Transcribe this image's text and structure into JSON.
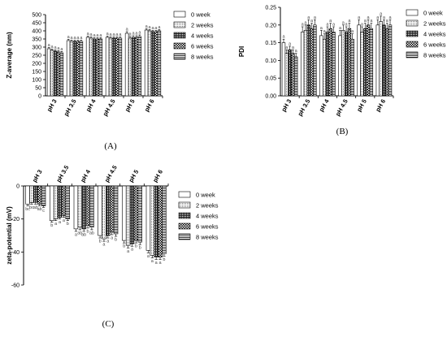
{
  "patterns": [
    "solid-white",
    "light-stipple",
    "dense-crosshatch",
    "checker",
    "horizontal-lines"
  ],
  "colors": {
    "ink": "#000000",
    "fill": "#ffffff",
    "significance_text": "#444444"
  },
  "chart_data": [
    {
      "type": "bar",
      "panel": "(A)",
      "ylabel": "Z-average (nm)",
      "ylim": [
        0,
        500
      ],
      "yticks": [
        0,
        50,
        100,
        150,
        200,
        250,
        300,
        350,
        400,
        450,
        500
      ],
      "categories": [
        "pH 3",
        "pH 3.5",
        "pH 4",
        "pH 4.5",
        "pH 5",
        "pH 6"
      ],
      "legend_position": "right",
      "series": [
        {
          "name": "0 week",
          "values": [
            290,
            340,
            360,
            360,
            385,
            405
          ],
          "errors": [
            8,
            8,
            8,
            8,
            10,
            8
          ]
        },
        {
          "name": "2 weeks",
          "values": [
            280,
            335,
            355,
            355,
            355,
            400
          ],
          "errors": [
            8,
            8,
            8,
            8,
            10,
            8
          ]
        },
        {
          "name": "4 weeks",
          "values": [
            275,
            335,
            350,
            355,
            360,
            395
          ],
          "errors": [
            8,
            8,
            8,
            8,
            10,
            8
          ]
        },
        {
          "name": "6 weeks",
          "values": [
            270,
            335,
            350,
            355,
            360,
            395
          ],
          "errors": [
            8,
            8,
            8,
            8,
            10,
            8
          ]
        },
        {
          "name": "8 weeks",
          "values": [
            265,
            335,
            350,
            355,
            365,
            400
          ],
          "errors": [
            8,
            8,
            8,
            8,
            10,
            8
          ]
        }
      ],
      "significance": [
        [
          "a",
          "a",
          "a",
          "a",
          "a"
        ],
        [
          "a",
          "a",
          "a",
          "a",
          "a"
        ],
        [
          "a",
          "a",
          "a",
          "a",
          "a"
        ],
        [
          "a",
          "a",
          "a",
          "a",
          "a"
        ],
        [
          "a",
          "a",
          "a",
          "a",
          "a"
        ],
        [
          "a",
          "a",
          "a",
          "a",
          "a"
        ]
      ]
    },
    {
      "type": "bar",
      "panel": "(B)",
      "ylabel": "PDI",
      "ylim": [
        0,
        0.25
      ],
      "yticks": [
        0,
        0.05,
        0.1,
        0.15,
        0.2,
        0.25
      ],
      "ytick_labels": [
        "0.00",
        "0.05",
        "0.10",
        "0.15",
        "0.20",
        "0.25"
      ],
      "categories": [
        "pH 3",
        "pH 3.5",
        "pH 4",
        "pH 4.5",
        "pH 5",
        "pH 6"
      ],
      "legend_position": "right",
      "series": [
        {
          "name": "0 week",
          "values": [
            0.15,
            0.18,
            0.17,
            0.17,
            0.2,
            0.2
          ],
          "errors": [
            0.01,
            0.015,
            0.015,
            0.015,
            0.015,
            0.015
          ]
        },
        {
          "name": "2 weeks",
          "values": [
            0.12,
            0.185,
            0.16,
            0.185,
            0.18,
            0.21
          ],
          "errors": [
            0.01,
            0.015,
            0.015,
            0.015,
            0.015,
            0.015
          ]
        },
        {
          "name": "4 weeks",
          "values": [
            0.13,
            0.2,
            0.18,
            0.18,
            0.19,
            0.2
          ],
          "errors": [
            0.01,
            0.015,
            0.015,
            0.015,
            0.015,
            0.015
          ]
        },
        {
          "name": "6 weeks",
          "values": [
            0.12,
            0.19,
            0.19,
            0.19,
            0.2,
            0.19
          ],
          "errors": [
            0.01,
            0.015,
            0.015,
            0.015,
            0.015,
            0.015
          ]
        },
        {
          "name": "8 weeks",
          "values": [
            0.11,
            0.2,
            0.18,
            0.16,
            0.19,
            0.2
          ],
          "errors": [
            0.01,
            0.015,
            0.015,
            0.015,
            0.015,
            0.015
          ]
        }
      ],
      "significance": [
        [
          "a",
          "a",
          "a",
          "a",
          "a"
        ],
        [
          "a",
          "a",
          "a",
          "a",
          "a"
        ],
        [
          "a",
          "a",
          "a",
          "a",
          "a"
        ],
        [
          "a",
          "a",
          "a",
          "a",
          "a"
        ],
        [
          "a",
          "a",
          "a",
          "a",
          "a"
        ],
        [
          "a",
          "a",
          "a",
          "a",
          "a"
        ]
      ]
    },
    {
      "type": "bar",
      "panel": "(C)",
      "ylabel": "zeta-potential (mV)",
      "ylim": [
        -60,
        0
      ],
      "yticks": [
        0,
        -20,
        -40,
        -60
      ],
      "categories": [
        "pH 3",
        "pH 3.5",
        "pH 4",
        "pH 4.5",
        "pH 5",
        "pH 6"
      ],
      "category_labels_position": "top",
      "legend_position": "right",
      "series": [
        {
          "name": "0 week",
          "values": [
            -11,
            -21,
            -26,
            -30,
            -33,
            -39
          ],
          "errors": [
            1,
            1,
            1.5,
            1.5,
            1.5,
            1.5
          ]
        },
        {
          "name": "2 weeks",
          "values": [
            -10,
            -20,
            -25,
            -32,
            -36,
            -42
          ],
          "errors": [
            1,
            1,
            1.5,
            1.5,
            1.5,
            1.5
          ]
        },
        {
          "name": "4 weeks",
          "values": [
            -10,
            -19,
            -26,
            -30,
            -35,
            -43
          ],
          "errors": [
            1,
            1,
            1.5,
            1.5,
            1.5,
            1.5
          ]
        },
        {
          "name": "6 weeks",
          "values": [
            -11,
            -18,
            -24,
            -28,
            -33,
            -43
          ],
          "errors": [
            1,
            1,
            1.5,
            1.5,
            1.5,
            1.5
          ]
        },
        {
          "name": "8 weeks",
          "values": [
            -12,
            -20,
            -25,
            -29,
            -34,
            -41
          ],
          "errors": [
            1,
            1,
            1.5,
            1.5,
            1.5,
            1.5
          ]
        }
      ],
      "significance": [
        [
          "bc",
          "bc",
          "ab",
          "ab",
          "c"
        ],
        [
          "b",
          "a",
          "a",
          "a",
          "b"
        ],
        [
          "a",
          "ab",
          "ab",
          "b",
          "ab"
        ],
        [
          "b",
          "a",
          "a",
          "a",
          "b"
        ],
        [
          "b",
          "a",
          "a",
          "b",
          "b"
        ],
        [
          "a",
          "a",
          "a",
          "a",
          "b"
        ]
      ]
    }
  ]
}
